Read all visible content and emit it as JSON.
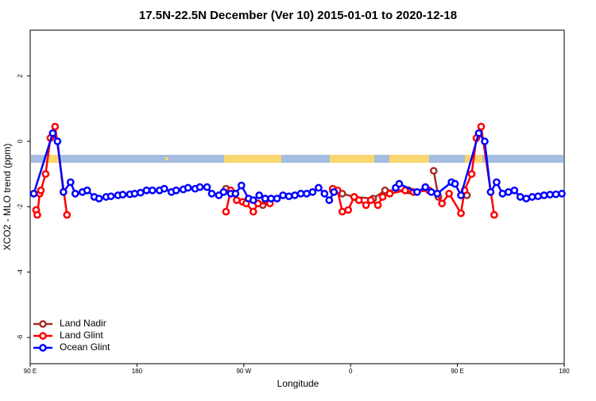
{
  "chart_data": {
    "type": "line",
    "title": "17.5N-22.5N December (Ver 10)   2015-01-01 to 2020-12-18",
    "xlabel": "Longitude",
    "ylabel": "XCO2 - MLO trend (ppm)",
    "xlim": [
      90,
      540
    ],
    "xticks": [
      {
        "value": 90,
        "label": "90 E"
      },
      {
        "value": 180,
        "label": "180"
      },
      {
        "value": 270,
        "label": "90 W"
      },
      {
        "value": 360,
        "label": "0"
      },
      {
        "value": 450,
        "label": "90 E"
      },
      {
        "value": 540,
        "label": "180"
      }
    ],
    "ylim": [
      -6.8,
      3.4
    ],
    "yticks": [
      -6,
      -4,
      -2,
      0,
      2
    ],
    "legend": "bottom-left",
    "series": [
      {
        "name": "Land Nadir",
        "color": "#a0302c",
        "x": [
          95,
          255,
          286,
          345,
          353,
          363,
          379,
          389,
          409,
          430,
          434,
          458
        ],
        "values": [
          -2.1,
          -1.45,
          -1.95,
          -1.5,
          -1.6,
          -1.7,
          -1.75,
          -1.5,
          -1.5,
          -0.9,
          -1.7,
          -1.65
        ]
      },
      {
        "name": "Land Glint",
        "color": "#ff0000",
        "x": [
          95,
          96,
          98,
          99,
          103,
          107,
          111,
          121,
          255,
          259,
          264,
          269,
          272,
          278,
          282,
          292,
          345,
          349,
          353,
          358,
          363,
          367,
          373,
          377,
          383,
          387,
          393,
          406,
          413,
          426,
          433,
          437,
          443,
          453,
          456,
          462,
          466,
          470,
          481
        ],
        "values": [
          -2.1,
          -2.25,
          -1.6,
          -1.5,
          -1.0,
          0.1,
          0.45,
          -2.25,
          -2.15,
          -1.5,
          -1.8,
          -1.85,
          -1.9,
          -2.15,
          -1.9,
          -1.9,
          -1.45,
          -1.5,
          -2.15,
          -2.1,
          -1.7,
          -1.8,
          -1.95,
          -1.8,
          -1.95,
          -1.7,
          -1.6,
          -1.5,
          -1.55,
          -1.5,
          -1.6,
          -1.9,
          -1.6,
          -2.2,
          -1.5,
          -1.0,
          0.1,
          0.45,
          -2.25
        ]
      },
      {
        "name": "Ocean Glint",
        "color": "#0000ff",
        "x": [
          93,
          109,
          113,
          118,
          124,
          128,
          134,
          138,
          144,
          148,
          154,
          158,
          164,
          168,
          174,
          178,
          183,
          188,
          193,
          199,
          203,
          209,
          213,
          219,
          223,
          229,
          233,
          239,
          243,
          249,
          253,
          259,
          263,
          268,
          274,
          278,
          283,
          288,
          293,
          298,
          303,
          308,
          313,
          318,
          323,
          328,
          333,
          338,
          342,
          346,
          398,
          401,
          416,
          423,
          428,
          433,
          445,
          448,
          453,
          468,
          473,
          478,
          483,
          488,
          493,
          498,
          503,
          508,
          513,
          518,
          523,
          528,
          533,
          538
        ],
        "values": [
          -1.6,
          0.25,
          0.0,
          -1.55,
          -1.25,
          -1.6,
          -1.55,
          -1.5,
          -1.7,
          -1.75,
          -1.7,
          -1.68,
          -1.65,
          -1.63,
          -1.62,
          -1.6,
          -1.57,
          -1.5,
          -1.5,
          -1.5,
          -1.45,
          -1.55,
          -1.5,
          -1.47,
          -1.42,
          -1.45,
          -1.4,
          -1.4,
          -1.6,
          -1.65,
          -1.55,
          -1.6,
          -1.6,
          -1.35,
          -1.75,
          -1.8,
          -1.65,
          -1.75,
          -1.75,
          -1.75,
          -1.65,
          -1.68,
          -1.65,
          -1.6,
          -1.6,
          -1.55,
          -1.42,
          -1.6,
          -1.8,
          -1.55,
          -1.42,
          -1.3,
          -1.55,
          -1.4,
          -1.55,
          -1.6,
          -1.25,
          -1.3,
          -1.65,
          0.25,
          0.0,
          -1.55,
          -1.25,
          -1.6,
          -1.55,
          -1.5,
          -1.7,
          -1.75,
          -1.7,
          -1.68,
          -1.65,
          -1.63,
          -1.62,
          -1.6
        ]
      }
    ]
  }
}
